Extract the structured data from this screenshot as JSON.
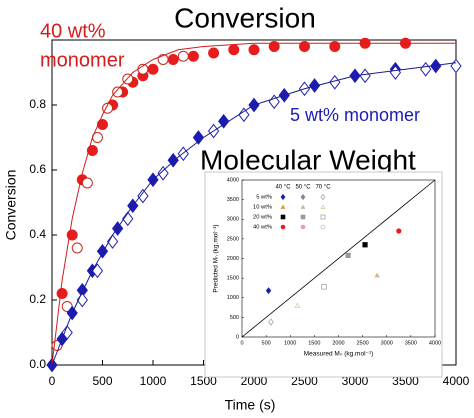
{
  "chart_data": [
    {
      "type": "scatter",
      "title": "Conversion",
      "x_label": "Time (s)",
      "y_label": "Conversion",
      "annotations": [
        "40 wt%",
        "monomer",
        "5 wt% monomer",
        "Molecular Weight"
      ],
      "annotation_colors": [
        "#d41c1c",
        "#d41c1c",
        "#1c1cb4",
        "#000000"
      ],
      "xlim": [
        0,
        4000
      ],
      "xticks": [
        0,
        500,
        1000,
        1500,
        2000,
        2500,
        3000,
        3500,
        4000
      ],
      "ylim": [
        0,
        1
      ],
      "yticks": [
        {
          "value": 0,
          "label": "0.0"
        },
        0.2,
        0.4,
        0.6,
        0.8
      ],
      "series": [
        {
          "color": "#e81c1c",
          "marker": "circle",
          "fill": true,
          "x": [
            100,
            200,
            300,
            400,
            500,
            600,
            700,
            800,
            900,
            1000,
            1200,
            1400,
            1600,
            1800,
            2000,
            2200,
            2500,
            2800,
            3100,
            3500
          ],
          "values": [
            0.22,
            0.4,
            0.57,
            0.66,
            0.74,
            0.8,
            0.84,
            0.87,
            0.89,
            0.91,
            0.94,
            0.95,
            0.96,
            0.97,
            0.97,
            0.98,
            0.98,
            0.98,
            0.99,
            0.99
          ]
        },
        {
          "color": "#c8281e",
          "marker": "circle",
          "fill": false,
          "x": [
            50,
            150,
            250,
            350,
            450,
            550,
            650,
            750,
            900,
            1100,
            1300
          ],
          "values": [
            0.06,
            0.18,
            0.36,
            0.56,
            0.7,
            0.79,
            0.84,
            0.88,
            0.91,
            0.94,
            0.95
          ]
        },
        {
          "color": "#1c1cb4",
          "marker": "diamond",
          "fill": true,
          "x": [
            0,
            100,
            200,
            300,
            400,
            500,
            650,
            800,
            1000,
            1200,
            1450,
            1700,
            2000,
            2300,
            2600,
            3000,
            3400,
            3800
          ],
          "values": [
            0,
            0.08,
            0.16,
            0.23,
            0.29,
            0.35,
            0.42,
            0.49,
            0.57,
            0.63,
            0.7,
            0.75,
            0.8,
            0.83,
            0.86,
            0.89,
            0.91,
            0.92
          ]
        },
        {
          "color": "#1c1cb4",
          "marker": "diamond",
          "fill": false,
          "x": [
            150,
            300,
            450,
            600,
            750,
            900,
            1100,
            1300,
            1600,
            1900,
            2200,
            2500,
            2800,
            3100,
            3400,
            3700,
            4000
          ],
          "values": [
            0.1,
            0.2,
            0.29,
            0.38,
            0.45,
            0.52,
            0.59,
            0.65,
            0.72,
            0.77,
            0.81,
            0.85,
            0.87,
            0.89,
            0.9,
            0.91,
            0.92
          ]
        },
        {
          "color": "#d41c1c",
          "marker": "line",
          "x": [
            0,
            100,
            200,
            300,
            400,
            500,
            600,
            800,
            1000,
            1250,
            1500,
            2000,
            2500,
            3000,
            3500,
            4000
          ],
          "values": [
            0,
            0.26,
            0.45,
            0.59,
            0.7,
            0.77,
            0.83,
            0.9,
            0.94,
            0.97,
            0.98,
            0.99,
            0.99,
            0.99,
            0.99,
            0.99
          ]
        },
        {
          "color": "#1c1c8c",
          "marker": "line",
          "x": [
            0,
            200,
            400,
            600,
            800,
            1000,
            1250,
            1500,
            2000,
            2500,
            3000,
            3500,
            4000
          ],
          "values": [
            0,
            0.16,
            0.29,
            0.4,
            0.49,
            0.57,
            0.64,
            0.7,
            0.8,
            0.85,
            0.89,
            0.91,
            0.93
          ]
        }
      ]
    },
    {
      "type": "scatter",
      "x_label": "Measured Mₙ (kg.mol⁻¹)",
      "y_label": "Predicted Mₙ (kg.mol⁻¹)",
      "xlim": [
        0,
        4000
      ],
      "xticks": [
        0,
        500,
        1000,
        1500,
        2000,
        2500,
        3000,
        3500,
        4000
      ],
      "ylim": [
        0,
        4000
      ],
      "yticks": [
        0,
        500,
        1000,
        1500,
        2000,
        2500,
        3000,
        3500,
        4000
      ],
      "legend_rows": [
        "5 wt%",
        "10 wt%",
        "20 wt%",
        "40 wt%"
      ],
      "legend_columns": [
        "40 °C",
        "50 °C",
        "70 °C"
      ],
      "series": [
        {
          "color": "#1c1cb4",
          "marker": "diamond",
          "fill": true,
          "x": [
            550
          ],
          "values": [
            1180
          ]
        },
        {
          "color": "#888888",
          "marker": "diamond",
          "fill": true,
          "x": [],
          "values": []
        },
        {
          "color": "#888888",
          "marker": "diamond",
          "fill": false,
          "x": [
            600
          ],
          "values": [
            380
          ]
        },
        {
          "color": "#e89a3c",
          "marker": "triangle",
          "fill": true,
          "x": [],
          "values": []
        },
        {
          "color": "#d9b98a",
          "marker": "triangle",
          "fill": true,
          "x": [
            2800
          ],
          "values": [
            1570
          ]
        },
        {
          "color": "#d9b98a",
          "marker": "triangle",
          "fill": false,
          "x": [
            1150
          ],
          "values": [
            800
          ]
        },
        {
          "color": "#000000",
          "marker": "square",
          "fill": true,
          "x": [
            2550
          ],
          "values": [
            2350
          ]
        },
        {
          "color": "#999999",
          "marker": "square",
          "fill": true,
          "x": [
            2200
          ],
          "values": [
            2080
          ]
        },
        {
          "color": "#888888",
          "marker": "square",
          "fill": false,
          "x": [
            1700
          ],
          "values": [
            1280
          ]
        },
        {
          "color": "#e81c1c",
          "marker": "circle",
          "fill": true,
          "x": [
            3250
          ],
          "values": [
            2700
          ]
        },
        {
          "color": "#e8a0a0",
          "marker": "circle",
          "fill": true,
          "x": [],
          "values": []
        },
        {
          "color": "#aaaaaa",
          "marker": "circle",
          "fill": false,
          "x": [],
          "values": []
        }
      ]
    }
  ]
}
